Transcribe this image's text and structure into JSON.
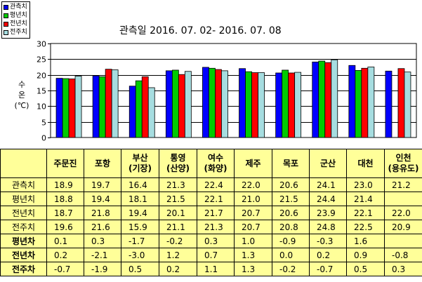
{
  "chart_data": {
    "type": "bar",
    "title": "관측일 2016. 07. 02- 2016. 07. 08",
    "ylabel": [
      "수",
      "온",
      "(℃)"
    ],
    "ylim": [
      0,
      30
    ],
    "yticks": [
      0,
      5,
      10,
      15,
      20,
      25,
      30
    ],
    "grid": true,
    "legend_position": "top-left",
    "categories": [
      "주문진",
      "포항",
      "부산",
      "통영",
      "여수",
      "제주",
      "목포",
      "군산",
      "대천",
      "인천"
    ],
    "series": [
      {
        "name": "관측치",
        "color": "#0000ff",
        "values": [
          18.9,
          19.7,
          16.4,
          21.3,
          22.4,
          22.0,
          20.6,
          24.1,
          23.0,
          21.2
        ]
      },
      {
        "name": "평년치",
        "color": "#00cc00",
        "values": [
          18.8,
          19.4,
          18.1,
          21.5,
          22.1,
          21.0,
          21.5,
          24.4,
          21.4,
          null
        ]
      },
      {
        "name": "전년치",
        "color": "#ff0000",
        "values": [
          18.7,
          21.8,
          19.4,
          20.1,
          21.7,
          20.7,
          20.6,
          23.9,
          22.1,
          22.0
        ]
      },
      {
        "name": "전주치",
        "color": "#a6dde0",
        "values": [
          19.6,
          21.6,
          15.9,
          21.1,
          21.3,
          20.7,
          20.8,
          24.8,
          22.5,
          20.9
        ]
      }
    ]
  },
  "table": {
    "header_lines": [
      [
        "주문진"
      ],
      [
        "포항"
      ],
      [
        "부산",
        "(기장)"
      ],
      [
        "통영",
        "(산양)"
      ],
      [
        "여수",
        "(화양)"
      ],
      [
        "제주"
      ],
      [
        "목포"
      ],
      [
        "군산"
      ],
      [
        "대천"
      ],
      [
        "인천",
        "(용유도)"
      ]
    ],
    "rows": [
      {
        "label": "관측치",
        "bold": false,
        "cells": [
          "18.9",
          "19.7",
          "16.4",
          "21.3",
          "22.4",
          "22.0",
          "20.6",
          "24.1",
          "23.0",
          "21.2"
        ]
      },
      {
        "label": "평년치",
        "bold": false,
        "cells": [
          "18.8",
          "19.4",
          "18.1",
          "21.5",
          "22.1",
          "21.0",
          "21.5",
          "24.4",
          "21.4",
          ""
        ]
      },
      {
        "label": "전년치",
        "bold": false,
        "cells": [
          "18.7",
          "21.8",
          "19.4",
          "20.1",
          "21.7",
          "20.7",
          "20.6",
          "23.9",
          "22.1",
          "22.0"
        ]
      },
      {
        "label": "전주치",
        "bold": false,
        "cells": [
          "19.6",
          "21.6",
          "15.9",
          "21.1",
          "21.3",
          "20.7",
          "20.8",
          "24.8",
          "22.5",
          "20.9"
        ]
      },
      {
        "label": "평년차",
        "bold": true,
        "cells": [
          "0.1",
          "0.3",
          "-1.7",
          "-0.2",
          "0.3",
          "1.0",
          "-0.9",
          "-0.3",
          "1.6",
          ""
        ]
      },
      {
        "label": "전년차",
        "bold": true,
        "cells": [
          "0.2",
          "-2.1",
          "-3.0",
          "1.2",
          "0.7",
          "1.3",
          "0.0",
          "0.2",
          "0.9",
          "-0.8"
        ]
      },
      {
        "label": "전주차",
        "bold": true,
        "cells": [
          "-0.7",
          "-1.9",
          "0.5",
          "0.2",
          "1.1",
          "1.3",
          "-0.2",
          "-0.7",
          "0.5",
          "0.3"
        ]
      }
    ]
  }
}
